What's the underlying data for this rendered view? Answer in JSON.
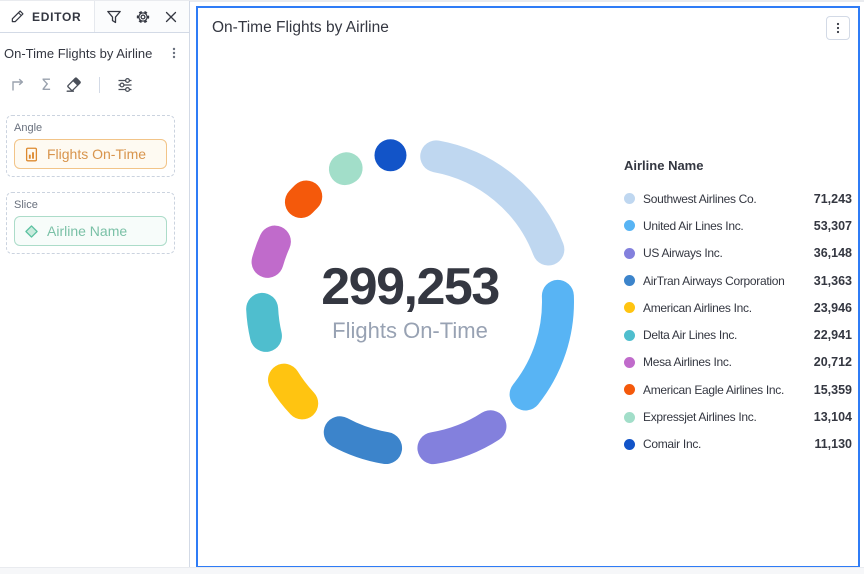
{
  "sidebar": {
    "tab_label": "EDITOR",
    "header_icons": [
      "pencil-icon",
      "filter-icon",
      "gear-icon",
      "close-icon"
    ],
    "layer_title": "On-Time Flights by Airline",
    "layer_menu_icon": "vertical-dots-icon",
    "toolbar": {
      "icons": [
        "corner-arrow-icon",
        "sigma-icon",
        "eraser-icon",
        "sliders-icon"
      ],
      "sigma_glyph": "Σ"
    },
    "angle": {
      "label": "Angle",
      "field": "Flights On-Time",
      "field_icon": "metric-document-icon"
    },
    "slice": {
      "label": "Slice",
      "field": "Airline Name",
      "field_icon": "diamond-icon"
    }
  },
  "panel": {
    "title": "On-Time Flights by Airline",
    "menu_icon": "vertical-dots-icon"
  },
  "colors": {
    "selection_border": "#2F7CF6",
    "text": "#343741",
    "subdued_text": "#69707D",
    "center_label_text": "#98A2B3",
    "divider": "#D3DAE6",
    "warning_border": "#F2C488",
    "warning_bg": "#FEFAF2",
    "warning_text": "#D8944C",
    "success_border": "#ACDCC9",
    "success_bg": "#F7FCFA",
    "success_text": "#7BC1A7"
  },
  "chart_data": {
    "type": "pie",
    "subtype": "segmented-donut",
    "title": "On-Time Flights by Airline",
    "center_value": "299,253",
    "center_label": "Flights On-Time",
    "total": 299253,
    "legend_title": "Airline Name",
    "legend_position": "right",
    "start_angle_deg": 4,
    "gap_deg": 6,
    "slices": [
      {
        "label": "Southwest Airlines Co.",
        "value": 71243,
        "display": "71,243",
        "color": "#BFD7F0"
      },
      {
        "label": "United Air Lines Inc.",
        "value": 53307,
        "display": "53,307",
        "color": "#58B4F4"
      },
      {
        "label": "US Airways Inc.",
        "value": 36148,
        "display": "36,148",
        "color": "#8380DD"
      },
      {
        "label": "AirTran Airways Corporation",
        "value": 31363,
        "display": "31,363",
        "color": "#3C84CB"
      },
      {
        "label": "American Airlines Inc.",
        "value": 23946,
        "display": "23,946",
        "color": "#FFC411"
      },
      {
        "label": "Delta Air Lines Inc.",
        "value": 22941,
        "display": "22,941",
        "color": "#4FBECE"
      },
      {
        "label": "Mesa Airlines Inc.",
        "value": 20712,
        "display": "20,712",
        "color": "#C06BCB"
      },
      {
        "label": "American Eagle Airlines Inc.",
        "value": 15359,
        "display": "15,359",
        "color": "#F4590B"
      },
      {
        "label": "Expressjet Airlines Inc.",
        "value": 13104,
        "display": "13,104",
        "color": "#A2DEC9"
      },
      {
        "label": "Comair Inc.",
        "value": 11130,
        "display": "11,130",
        "color": "#1254C8"
      }
    ]
  }
}
